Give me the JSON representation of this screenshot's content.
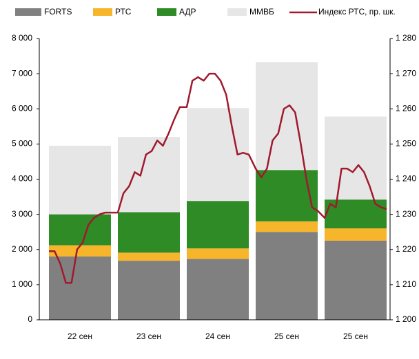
{
  "chart_data": {
    "type": "stacked_bar_line",
    "categories": [
      "22 сен",
      "23 сен",
      "24 сен",
      "25 сен",
      "25 сен"
    ],
    "series": [
      {
        "name": "FORTS",
        "color": "#808080",
        "values": [
          1800,
          1680,
          1730,
          2500,
          2250
        ]
      },
      {
        "name": "РТС",
        "color": "#f7b52c",
        "values": [
          320,
          230,
          300,
          300,
          350
        ]
      },
      {
        "name": "АДР",
        "color": "#2e8b26",
        "values": [
          880,
          1150,
          1350,
          1460,
          820
        ]
      },
      {
        "name": "ММВБ",
        "color": "#e6e6e6",
        "values": [
          1950,
          2140,
          2640,
          3070,
          2360
        ]
      },
      {
        "name": "Индекс РТС, пр. шк.",
        "color": "#a0192d",
        "axis": "y2",
        "values": [
          [
            1219.5,
            1219.5,
            1216,
            1210.5,
            1210.5,
            1220,
            1222,
            1227,
            1229,
            1230,
            1230.5,
            1230.5
          ],
          [
            1230.5,
            1236,
            1238,
            1242,
            1241,
            1247,
            1248,
            1251,
            1249.5,
            1253,
            1257,
            1260.5
          ],
          [
            1260.5,
            1268,
            1269,
            1268,
            1270,
            1270,
            1268,
            1264,
            1255,
            1247,
            1247.5,
            1247
          ],
          [
            1243,
            1240.5,
            1243,
            1251,
            1253,
            1260,
            1261,
            1259,
            1250,
            1240,
            1232,
            1231
          ],
          [
            1229,
            1233,
            1232,
            1243,
            1243,
            1242,
            1244,
            1242,
            1238,
            1233,
            1232,
            1231.5
          ]
        ]
      }
    ],
    "ylim": [
      0,
      8000
    ],
    "yticks": [
      0,
      {
        "value": 1000,
        "label": "1 000"
      },
      {
        "value": 2000,
        "label": "2 000"
      },
      {
        "value": 3000,
        "label": "3 000"
      },
      {
        "value": 4000,
        "label": "4 000"
      },
      {
        "value": 5000,
        "label": "5 000"
      },
      {
        "value": 6000,
        "label": "6 000"
      },
      {
        "value": 7000,
        "label": "7 000"
      },
      {
        "value": 8000,
        "label": "8 000"
      }
    ],
    "y2lim": [
      1200,
      1280
    ],
    "y2ticks": [
      {
        "value": 1200,
        "label": "1 200"
      },
      {
        "value": 1210,
        "label": "1 210"
      },
      {
        "value": 1220,
        "label": "1 220"
      },
      {
        "value": 1230,
        "label": "1 230"
      },
      {
        "value": 1240,
        "label": "1 240"
      },
      {
        "value": 1250,
        "label": "1 250"
      },
      {
        "value": 1260,
        "label": "1 260"
      },
      {
        "value": 1270,
        "label": "1 270"
      },
      {
        "value": 1280,
        "label": "1 280"
      }
    ],
    "grid": false,
    "legend": "top"
  }
}
